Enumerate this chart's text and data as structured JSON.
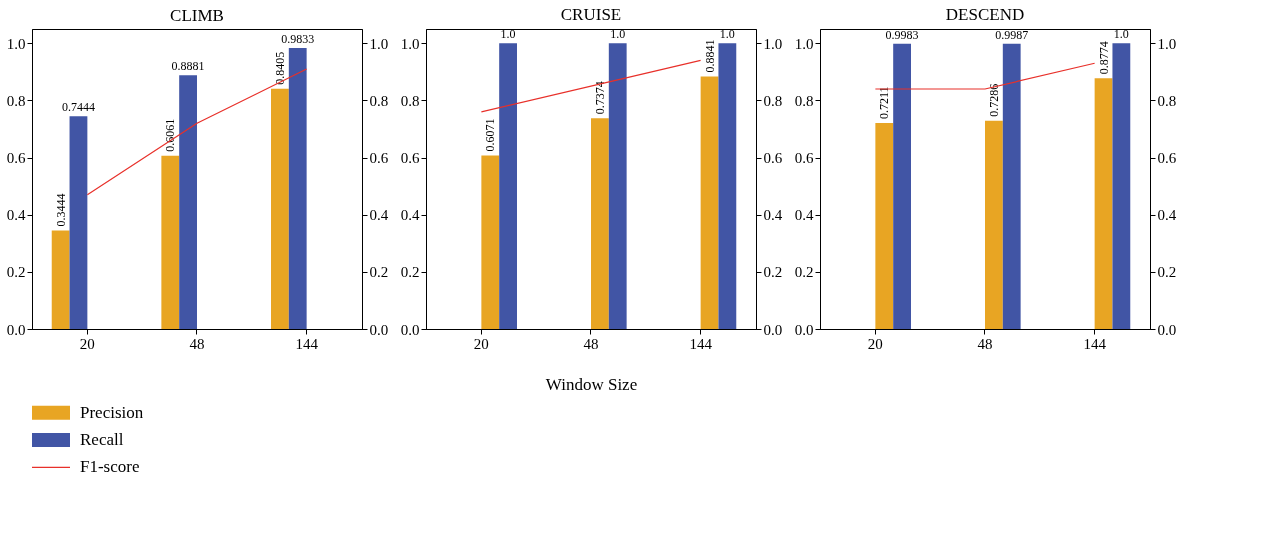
{
  "chart_data": [
    {
      "type": "bar",
      "title": "CLIMB",
      "categories": [
        "20",
        "48",
        "144"
      ],
      "series": [
        {
          "name": "Precision",
          "color": "#e8a523",
          "values": [
            0.3444,
            0.6061,
            0.8405
          ],
          "value_labels": [
            "0.3444",
            "0.6061",
            "0.8405"
          ]
        },
        {
          "name": "Recall",
          "color": "#4155a5",
          "values": [
            0.7444,
            0.8881,
            0.9833
          ],
          "value_labels": [
            "0.7444",
            "0.8881",
            "0.9833"
          ]
        },
        {
          "name": "F1-score",
          "type": "line",
          "axis": "y2",
          "color": "#e8302a",
          "values": [
            0.47,
            0.72,
            0.91
          ]
        }
      ],
      "ylim": [
        0,
        1.05
      ],
      "yticks": [
        {
          "value": 0,
          "label": "0.0"
        },
        {
          "value": 0.2,
          "label": "0.2"
        },
        {
          "value": 0.4,
          "label": "0.4"
        },
        {
          "value": 0.6,
          "label": "0.6"
        },
        {
          "value": 0.8,
          "label": "0.8"
        },
        {
          "value": 1,
          "label": "1.0"
        }
      ],
      "y2lim": [
        0,
        1.05
      ],
      "y2ticks": [
        {
          "value": 0,
          "label": "0.0"
        },
        {
          "value": 0.2,
          "label": "0.2"
        },
        {
          "value": 0.4,
          "label": "0.4"
        },
        {
          "value": 0.6,
          "label": "0.6"
        },
        {
          "value": 0.8,
          "label": "0.8"
        },
        {
          "value": 1,
          "label": "1.0"
        }
      ],
      "legend": "bottom left",
      "grid": false
    },
    {
      "type": "bar",
      "title": "CRUISE",
      "xlabel": "Window Size",
      "categories": [
        "20",
        "48",
        "144"
      ],
      "series": [
        {
          "color": "#e8a523",
          "values": [
            0.6071,
            0.7374,
            0.8841
          ],
          "value_labels": [
            "0.6071",
            "0.7374",
            "0.8841"
          ]
        },
        {
          "color": "#4155a5",
          "values": [
            1.0,
            1.0,
            1.0
          ],
          "value_labels": [
            "1.0",
            "1.0",
            "1.0"
          ]
        },
        {
          "type": "line",
          "axis": "y2",
          "color": "#e8302a",
          "values": [
            0.76,
            0.85,
            0.94
          ]
        }
      ],
      "ylim": [
        0,
        1.05
      ],
      "yticks": [
        {
          "value": 0,
          "label": "0.0"
        },
        {
          "value": 0.2,
          "label": "0.2"
        },
        {
          "value": 0.4,
          "label": "0.4"
        },
        {
          "value": 0.6,
          "label": "0.6"
        },
        {
          "value": 0.8,
          "label": "0.8"
        },
        {
          "value": 1,
          "label": "1.0"
        }
      ],
      "y2lim": [
        0,
        1.05
      ],
      "y2ticks": [
        {
          "value": 0,
          "label": "0.0"
        },
        {
          "value": 0.2,
          "label": "0.2"
        },
        {
          "value": 0.4,
          "label": "0.4"
        },
        {
          "value": 0.6,
          "label": "0.6"
        },
        {
          "value": 0.8,
          "label": "0.8"
        },
        {
          "value": 1,
          "label": "1.0"
        }
      ],
      "grid": false
    },
    {
      "type": "bar",
      "title": "DESCEND",
      "categories": [
        "20",
        "48",
        "144"
      ],
      "series": [
        {
          "color": "#e8a523",
          "values": [
            0.7211,
            0.7286,
            0.8774
          ],
          "value_labels": [
            "0.7211",
            "0.7286",
            "0.8774"
          ]
        },
        {
          "color": "#4155a5",
          "values": [
            0.9983,
            0.9987,
            1.0
          ],
          "value_labels": [
            "0.9983",
            "0.9987",
            "1.0"
          ]
        },
        {
          "type": "line",
          "axis": "y2",
          "color": "#e8302a",
          "values": [
            0.84,
            0.84,
            0.93
          ]
        }
      ],
      "ylim": [
        0,
        1.05
      ],
      "yticks": [
        {
          "value": 0,
          "label": "0.0"
        },
        {
          "value": 0.2,
          "label": "0.2"
        },
        {
          "value": 0.4,
          "label": "0.4"
        },
        {
          "value": 0.6,
          "label": "0.6"
        },
        {
          "value": 0.8,
          "label": "0.8"
        },
        {
          "value": 1,
          "label": "1.0"
        }
      ],
      "y2lim": [
        0,
        1.05
      ],
      "y2ticks": [
        {
          "value": 0,
          "label": "0.0"
        },
        {
          "value": 0.2,
          "label": "0.2"
        },
        {
          "value": 0.4,
          "label": "0.4"
        },
        {
          "value": 0.6,
          "label": "0.6"
        },
        {
          "value": 0.8,
          "label": "0.8"
        },
        {
          "value": 1,
          "label": "1.0"
        }
      ],
      "grid": false
    }
  ]
}
